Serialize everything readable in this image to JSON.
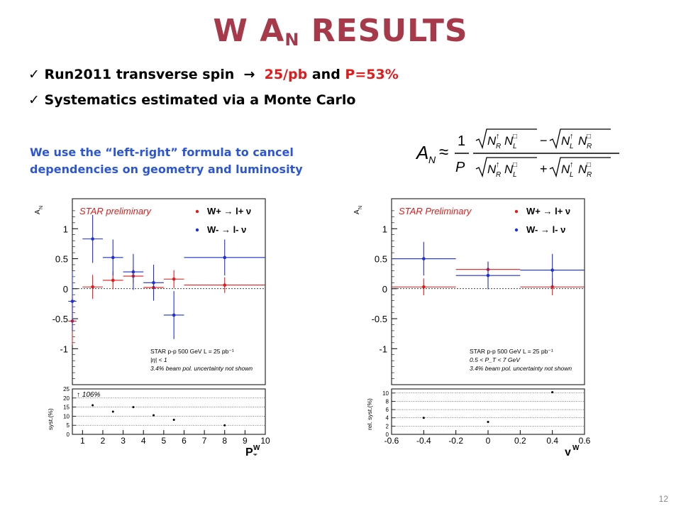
{
  "slide": {
    "title_main": "W A",
    "title_sub": "N",
    "title_tail": " RESULTS",
    "page_number": "12"
  },
  "bullets": [
    {
      "check": "✓",
      "text": "Run2011 transverse spin",
      "arrow": "→",
      "highlight": "25/pb",
      "mid": " and ",
      "highlight2": "P=53%"
    },
    {
      "check": "✓",
      "text": "Systematics estimated via a Monte Carlo"
    }
  ],
  "note": {
    "line1": "We use the “left-right” formula to cancel",
    "line2": "dependencies on geometry and luminosity"
  },
  "formula": {
    "lhs": "A",
    "lhs_sub": "N",
    "approx": "≈",
    "one": "1",
    "P": "P",
    "minus": "−",
    "plus": "+",
    "box": "□"
  },
  "colors": {
    "title": "#a63a4a",
    "highlight": "#e01b1b",
    "note": "#2c56d6",
    "red": "#e01b1b",
    "blue": "#1f2fd0"
  },
  "chart_data": [
    {
      "type": "scatter",
      "ylabel": "A_N",
      "xlabel": "P_T^W",
      "prelim": "STAR preliminary",
      "legend": [
        "W+ → l+ ν",
        "W- → l- ν"
      ],
      "info": [
        "STAR p-p 500 GeV  L = 25 pb⁻¹",
        "|η| < 1",
        "3.4% beam pol. uncertainty not shown"
      ],
      "xlim": [
        0.5,
        10
      ],
      "xticks": [
        1,
        2,
        3,
        4,
        5,
        6,
        7,
        8,
        9,
        10
      ],
      "ylim": [
        -1.6,
        1.5
      ],
      "yticks": [
        -1,
        -0.5,
        0,
        0.5,
        1
      ],
      "ytick_labels": [
        "-1",
        "-0.5",
        "0",
        "0.5",
        "1"
      ],
      "series": [
        {
          "name": "W+ → l+ ν",
          "color": "red",
          "points": [
            {
              "x": 0.5,
              "y": -0.54,
              "xerr": 0.2,
              "yerr": 0.4
            },
            {
              "x": 1.5,
              "y": 0.03,
              "xerr": 0.5,
              "yerr": 0.2
            },
            {
              "x": 2.5,
              "y": 0.14,
              "xerr": 0.5,
              "yerr": 0.15
            },
            {
              "x": 3.5,
              "y": 0.21,
              "xerr": 0.5,
              "yerr": 0.12
            },
            {
              "x": 4.5,
              "y": 0.02,
              "xerr": 0.5,
              "yerr": 0.12
            },
            {
              "x": 5.5,
              "y": 0.16,
              "xerr": 0.5,
              "yerr": 0.15
            },
            {
              "x": 8.0,
              "y": 0.06,
              "xerr": 2.0,
              "yerr": 0.13
            }
          ]
        },
        {
          "name": "W- → l- ν",
          "color": "blue",
          "points": [
            {
              "x": 0.5,
              "y": -0.21,
              "xerr": 0.2,
              "yerr": 0.5
            },
            {
              "x": 1.5,
              "y": 0.83,
              "xerr": 0.5,
              "yerr": 0.4
            },
            {
              "x": 2.5,
              "y": 0.52,
              "xerr": 0.5,
              "yerr": 0.3
            },
            {
              "x": 3.5,
              "y": 0.28,
              "xerr": 0.5,
              "yerr": 0.3
            },
            {
              "x": 4.5,
              "y": 0.1,
              "xerr": 0.5,
              "yerr": 0.3
            },
            {
              "x": 5.5,
              "y": -0.44,
              "xerr": 0.5,
              "yerr": 0.4
            },
            {
              "x": 8.0,
              "y": 0.52,
              "xerr": 2.0,
              "yerr": 0.3
            }
          ]
        }
      ],
      "syst": {
        "ylabel": "syst.(%)",
        "ylim": [
          0,
          25
        ],
        "yticks": [
          0,
          5,
          10,
          15,
          20,
          25
        ],
        "annotation": "↑ 106%",
        "points": [
          {
            "x": 1.5,
            "y": 16
          },
          {
            "x": 2.5,
            "y": 12.5
          },
          {
            "x": 3.5,
            "y": 15
          },
          {
            "x": 4.5,
            "y": 10.5
          },
          {
            "x": 5.5,
            "y": 8
          },
          {
            "x": 8.0,
            "y": 5
          }
        ]
      }
    },
    {
      "type": "scatter",
      "ylabel": "A_N",
      "xlabel": "y^W",
      "prelim": "STAR Preliminary",
      "legend": [
        "W+ → l+ ν",
        "W- → l- ν"
      ],
      "info": [
        "STAR p-p 500 GeV  L = 25 pb⁻¹",
        "0.5 < P_T < 7 GeV",
        "3.4% beam pol. uncertainty not shown"
      ],
      "xlim": [
        -0.6,
        0.6
      ],
      "xticks": [
        -0.6,
        -0.4,
        -0.2,
        0,
        0.2,
        0.4,
        0.6
      ],
      "ylim": [
        -1.6,
        1.5
      ],
      "yticks": [
        -1,
        -0.5,
        0,
        0.5,
        1
      ],
      "ytick_labels": [
        "-1",
        "-0.5",
        "0",
        "0.5",
        "1"
      ],
      "series": [
        {
          "name": "W+ → l+ ν",
          "color": "red",
          "points": [
            {
              "x": -0.4,
              "y": 0.03,
              "xerr": 0.2,
              "yerr": 0.14
            },
            {
              "x": 0.0,
              "y": 0.32,
              "xerr": 0.2,
              "yerr": 0.13
            },
            {
              "x": 0.4,
              "y": 0.03,
              "xerr": 0.2,
              "yerr": 0.14
            }
          ]
        },
        {
          "name": "W- → l- ν",
          "color": "blue",
          "points": [
            {
              "x": -0.4,
              "y": 0.5,
              "xerr": 0.2,
              "yerr": 0.28
            },
            {
              "x": 0.0,
              "y": 0.22,
              "xerr": 0.2,
              "yerr": 0.23
            },
            {
              "x": 0.4,
              "y": 0.31,
              "xerr": 0.2,
              "yerr": 0.27
            }
          ]
        }
      ],
      "syst": {
        "ylabel": "rel. syst.(%)",
        "ylim": [
          0,
          11
        ],
        "yticks": [
          0,
          2,
          4,
          6,
          8,
          10
        ],
        "points": [
          {
            "x": -0.4,
            "y": 4
          },
          {
            "x": 0.0,
            "y": 3
          },
          {
            "x": 0.4,
            "y": 10.2
          }
        ]
      }
    }
  ]
}
